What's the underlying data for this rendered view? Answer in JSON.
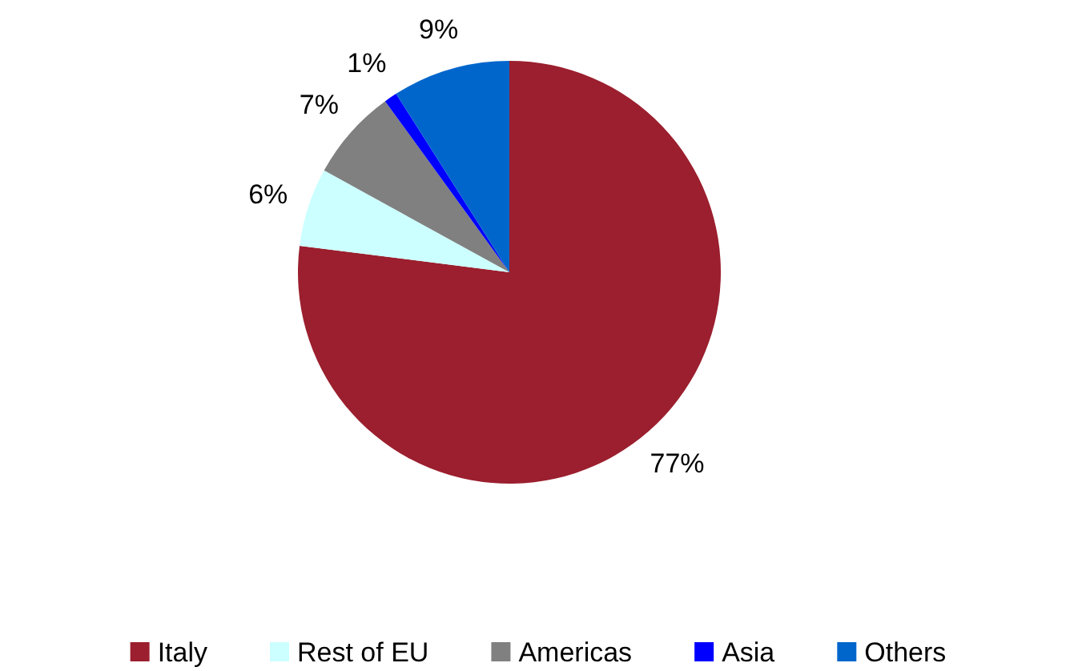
{
  "chart_data": {
    "type": "pie",
    "categories": [
      "Italy",
      "Rest of EU",
      "Americas",
      "Asia",
      "Others"
    ],
    "values": [
      77,
      6,
      7,
      1,
      9
    ],
    "colors": [
      "#9b1f2e",
      "#ccffff",
      "#808080",
      "#0000ff",
      "#0066cc"
    ],
    "value_labels": [
      "77%",
      "6%",
      "7%",
      "1%",
      "9%"
    ],
    "legend": "bottom"
  }
}
